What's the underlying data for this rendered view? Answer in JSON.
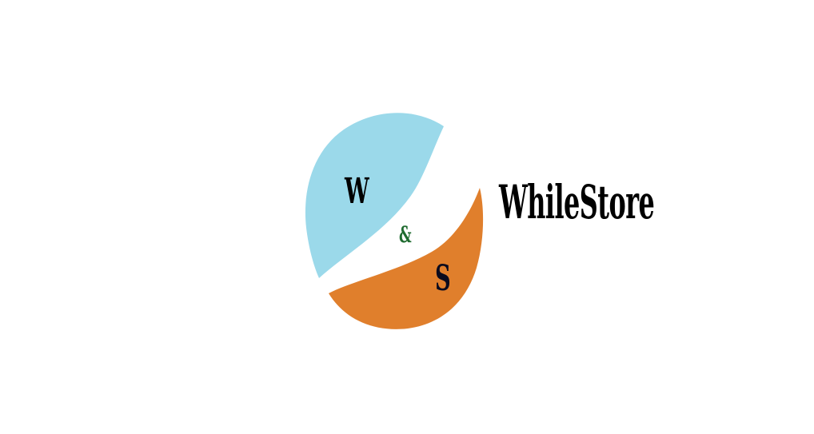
{
  "logo": {
    "letter_left": "W",
    "letter_middle": "&",
    "letter_right": "S",
    "brand_name": "WhileStore"
  },
  "colors": {
    "background": "#ffffff",
    "blue_shape": "#9bd9ea",
    "orange_shape": "#e07f2c",
    "ampersand": "#1f6b2f",
    "text": "#000000"
  }
}
